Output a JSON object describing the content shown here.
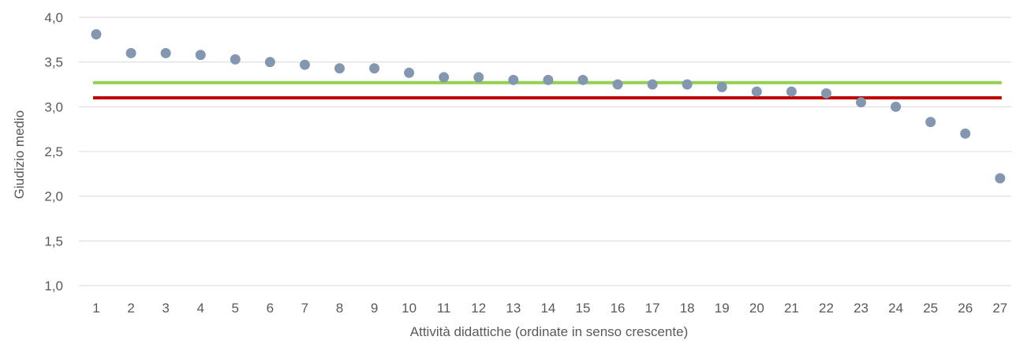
{
  "chart_data": {
    "type": "scatter",
    "title": "",
    "xlabel": "Attività didattiche (ordinate in senso crescente)",
    "ylabel": "Giudizio medio",
    "ylim": [
      1.0,
      4.0
    ],
    "yticks": [
      "1,0",
      "1,5",
      "2,0",
      "2,5",
      "3,0",
      "3,5",
      "4,0"
    ],
    "ytick_values": [
      1.0,
      1.5,
      2.0,
      2.5,
      3.0,
      3.5,
      4.0
    ],
    "categories": [
      "1",
      "2",
      "3",
      "4",
      "5",
      "6",
      "7",
      "8",
      "9",
      "10",
      "11",
      "12",
      "13",
      "14",
      "15",
      "16",
      "17",
      "18",
      "19",
      "20",
      "21",
      "22",
      "23",
      "24",
      "25",
      "26",
      "27"
    ],
    "series": [
      {
        "type": "scatter",
        "color": "#8497b0",
        "values": [
          3.81,
          3.6,
          3.6,
          3.58,
          3.53,
          3.5,
          3.47,
          3.43,
          3.43,
          3.38,
          3.33,
          3.33,
          3.3,
          3.3,
          3.3,
          3.25,
          3.25,
          3.25,
          3.22,
          3.17,
          3.17,
          3.15,
          3.05,
          3.0,
          2.83,
          2.7,
          2.2
        ]
      }
    ],
    "reference_lines": [
      {
        "value": 3.27,
        "color": "#92d050"
      },
      {
        "value": 3.1,
        "color": "#c00000"
      }
    ],
    "grid": true,
    "legend": "none"
  }
}
